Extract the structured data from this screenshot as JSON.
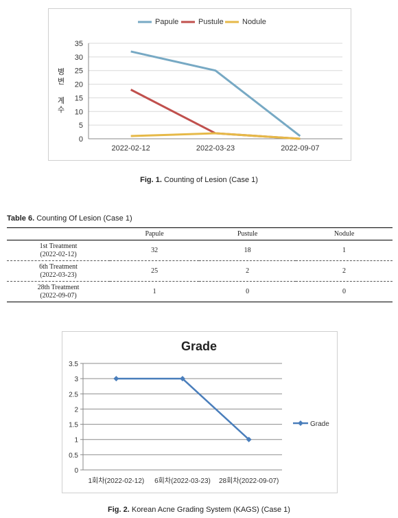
{
  "figures": [
    {
      "caption_label": "Fig. 1.",
      "caption_text": "Counting of Lesion (Case 1)",
      "chart_data": {
        "type": "line",
        "title": "",
        "xlabel": "",
        "ylabel": "병 변 계 수",
        "categories": [
          "2022-02-12",
          "2022-03-23",
          "2022-09-07"
        ],
        "series": [
          {
            "name": "Papule",
            "values": [
              32,
              25,
              1
            ],
            "color": "#77a9c4"
          },
          {
            "name": "Pustule",
            "values": [
              18,
              2,
              0
            ],
            "color": "#c0504d"
          },
          {
            "name": "Nodule",
            "values": [
              1,
              2,
              0
            ],
            "color": "#e6b948"
          }
        ],
        "ylim": [
          0,
          35
        ],
        "yticks": [
          0,
          5,
          10,
          15,
          20,
          25,
          30,
          35
        ],
        "grid": true,
        "legend": "top"
      }
    },
    {
      "caption_label": "Fig. 2.",
      "caption_text": "Korean Acne Grading System (KAGS) (Case 1)",
      "chart_data": {
        "type": "line",
        "title": "Grade",
        "xlabel": "",
        "ylabel": "",
        "categories": [
          "1회차(2022-02-12)",
          "6회차(2022-03-23)",
          "28회차(2022-09-07)"
        ],
        "series": [
          {
            "name": "Grade",
            "values": [
              3,
              3,
              1
            ],
            "color": "#4a7ebb"
          }
        ],
        "ylim": [
          0,
          3.5
        ],
        "yticks": [
          "0",
          "0.5",
          "1",
          "1.5",
          "2",
          "2.5",
          "3",
          "3.5"
        ],
        "grid": true,
        "legend": "right"
      }
    }
  ],
  "table": {
    "caption_label": "Table 6.",
    "caption_text": "Counting Of Lesion (Case 1)",
    "headers": [
      "",
      "Papule",
      "Pustule",
      "Nodule"
    ],
    "rows": [
      {
        "label": "1st Treatment",
        "date": "(2022-02-12)",
        "values": [
          "32",
          "18",
          "1"
        ]
      },
      {
        "label": "6th Treatment",
        "date": "(2022-03-23)",
        "values": [
          "25",
          "2",
          "2"
        ]
      },
      {
        "label": "28th Treatment",
        "date": "(2022-09-07)",
        "values": [
          "1",
          "0",
          "0"
        ]
      }
    ]
  }
}
